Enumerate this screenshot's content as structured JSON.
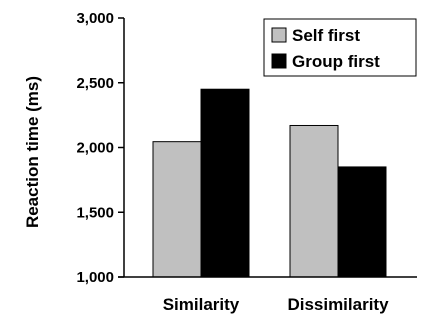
{
  "chart_data": {
    "type": "bar",
    "title": "",
    "xlabel": "",
    "ylabel": "Reaction time (ms)",
    "categories": [
      "Similarity",
      "Dissimilarity"
    ],
    "series": [
      {
        "name": "Self first",
        "values": [
          2045,
          2170
        ],
        "color": "#c0c0c0"
      },
      {
        "name": "Group first",
        "values": [
          2450,
          1850
        ],
        "color": "#000000"
      }
    ],
    "ylim": [
      1000,
      3000
    ],
    "yticks": [
      1000,
      1500,
      2000,
      2500,
      3000
    ],
    "ytick_labels": [
      "1,000",
      "1,500",
      "2,000",
      "2,500",
      "3,000"
    ],
    "grid": false,
    "legend_position": "top-right"
  }
}
